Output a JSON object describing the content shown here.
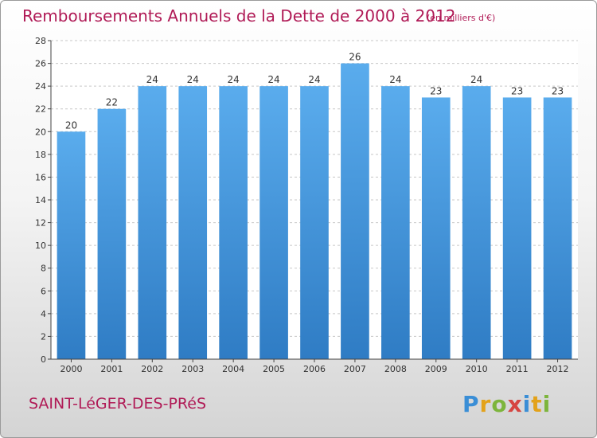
{
  "header": {
    "title": "Remboursements Annuels de la Dette de 2000 à 2012",
    "unit": "(en milliers d'€)"
  },
  "footer": {
    "city": "SAINT-LéGER-DES-PRéS",
    "brand_letters": [
      "P",
      "r",
      "o",
      "x",
      "i",
      "t",
      "i"
    ]
  },
  "colors": {
    "title": "#b01a56",
    "bar_top": "#5aaced",
    "bar_bottom": "#2f7cc4",
    "grid": "#c8c8c8"
  },
  "chart_data": {
    "type": "bar",
    "title": "Remboursements Annuels de la Dette de 2000 à 2012",
    "xlabel": "",
    "ylabel": "",
    "categories": [
      "2000",
      "2001",
      "2002",
      "2003",
      "2004",
      "2005",
      "2006",
      "2007",
      "2008",
      "2009",
      "2010",
      "2011",
      "2012"
    ],
    "values": [
      20,
      22,
      24,
      24,
      24,
      24,
      24,
      26,
      24,
      23,
      24,
      23,
      23
    ],
    "ylim": [
      0,
      28
    ],
    "yticks": [
      0,
      2,
      4,
      6,
      8,
      10,
      12,
      14,
      16,
      18,
      20,
      22,
      24,
      26,
      28
    ],
    "grid": true,
    "data_labels": true
  }
}
